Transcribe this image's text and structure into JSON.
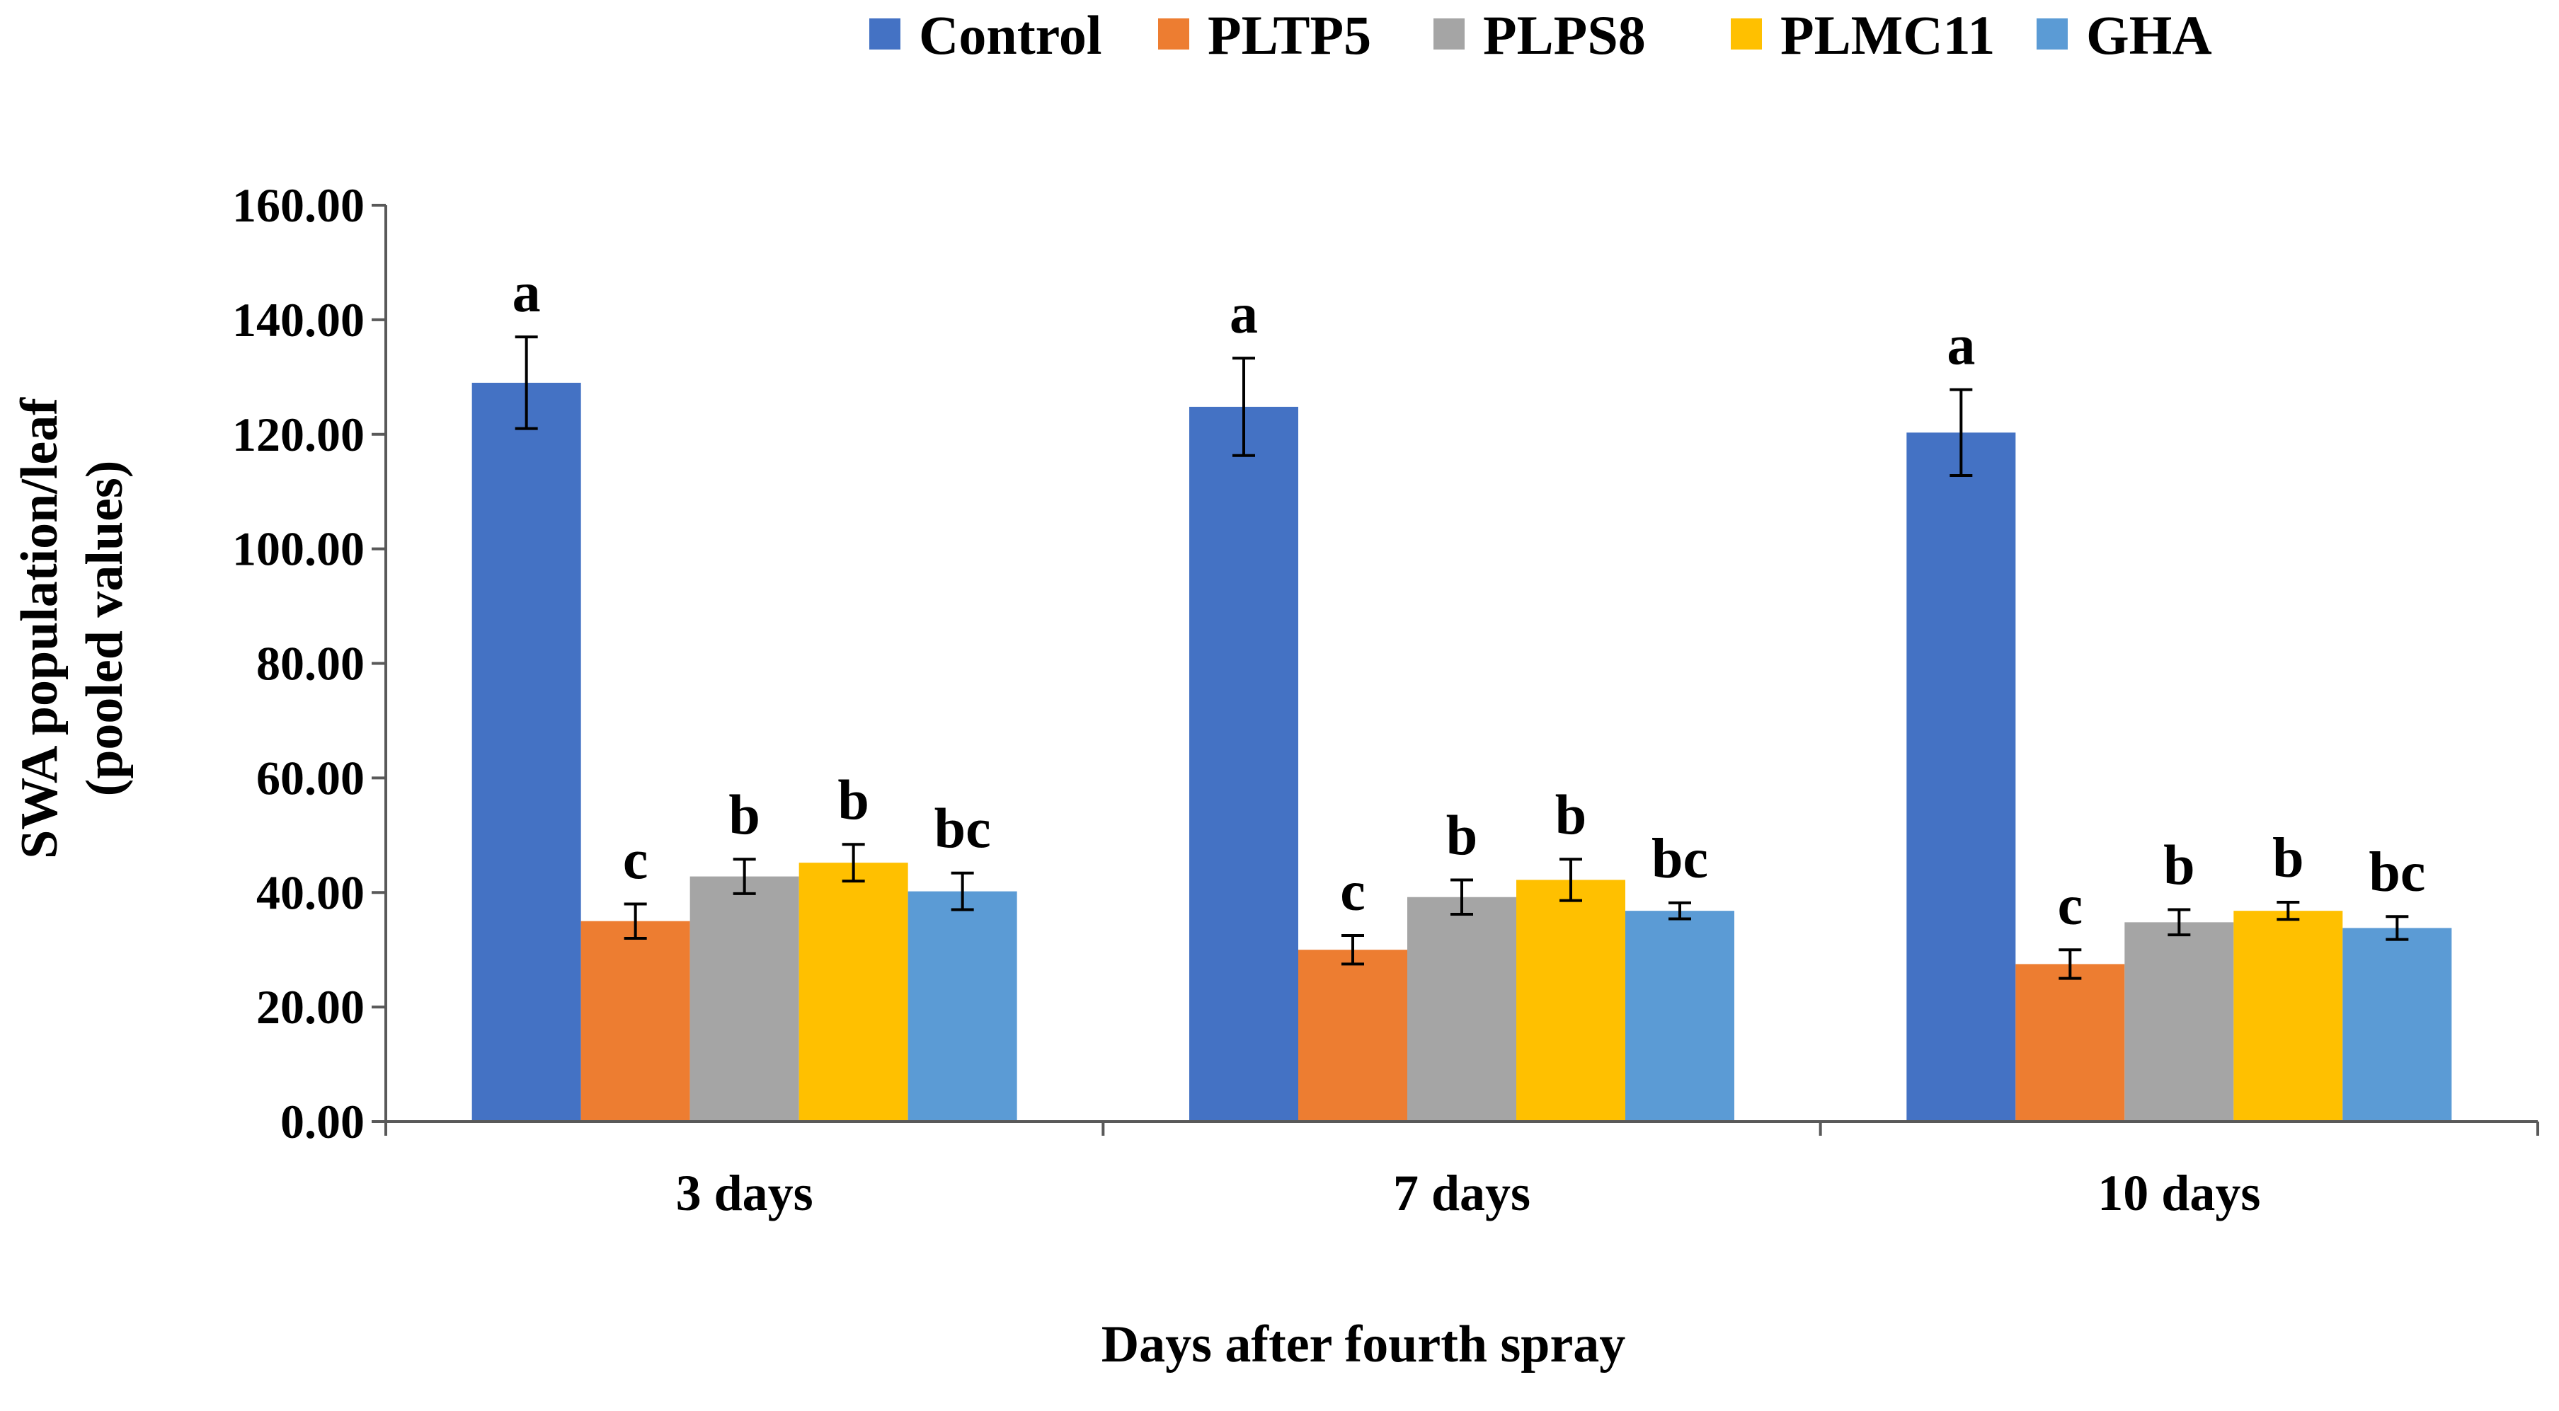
{
  "chart_data": {
    "type": "bar",
    "title": "",
    "xlabel": "Days after fourth spray",
    "ylabel_line1": "SWA population/leaf",
    "ylabel_line2": "(pooled values)",
    "ylim": [
      0,
      160
    ],
    "yticks": [
      0,
      20,
      40,
      60,
      80,
      100,
      120,
      140,
      160
    ],
    "ytick_labels": [
      "0.00",
      "20.00",
      "40.00",
      "60.00",
      "80.00",
      "100.00",
      "120.00",
      "140.00",
      "160.00"
    ],
    "categories": [
      "3 days",
      "7 days",
      "10 days"
    ],
    "legend_position": "top",
    "series": [
      {
        "name": "Control",
        "color": "#4472C4",
        "values": [
          129.0,
          124.8,
          120.3
        ],
        "errors": [
          8.0,
          8.5,
          7.5
        ],
        "letters": [
          "a",
          "a",
          "a"
        ]
      },
      {
        "name": "PLTP5",
        "color": "#ED7D31",
        "values": [
          35.0,
          30.0,
          27.5
        ],
        "errors": [
          3.0,
          2.5,
          2.5
        ],
        "letters": [
          "c",
          "c",
          "c"
        ]
      },
      {
        "name": "PLPS8",
        "color": "#A5A5A5",
        "values": [
          42.8,
          39.2,
          34.8
        ],
        "errors": [
          3.0,
          3.0,
          2.2
        ],
        "letters": [
          "b",
          "b",
          "b"
        ]
      },
      {
        "name": "PLMC11",
        "color": "#FFC000",
        "values": [
          45.2,
          42.2,
          36.8
        ],
        "errors": [
          3.2,
          3.6,
          1.5
        ],
        "letters": [
          "b",
          "b",
          "b"
        ]
      },
      {
        "name": "GHA",
        "color": "#5B9BD5",
        "values": [
          40.2,
          36.8,
          33.8
        ],
        "errors": [
          3.2,
          1.4,
          2.0
        ],
        "letters": [
          "bc",
          "bc",
          "bc"
        ]
      }
    ]
  }
}
